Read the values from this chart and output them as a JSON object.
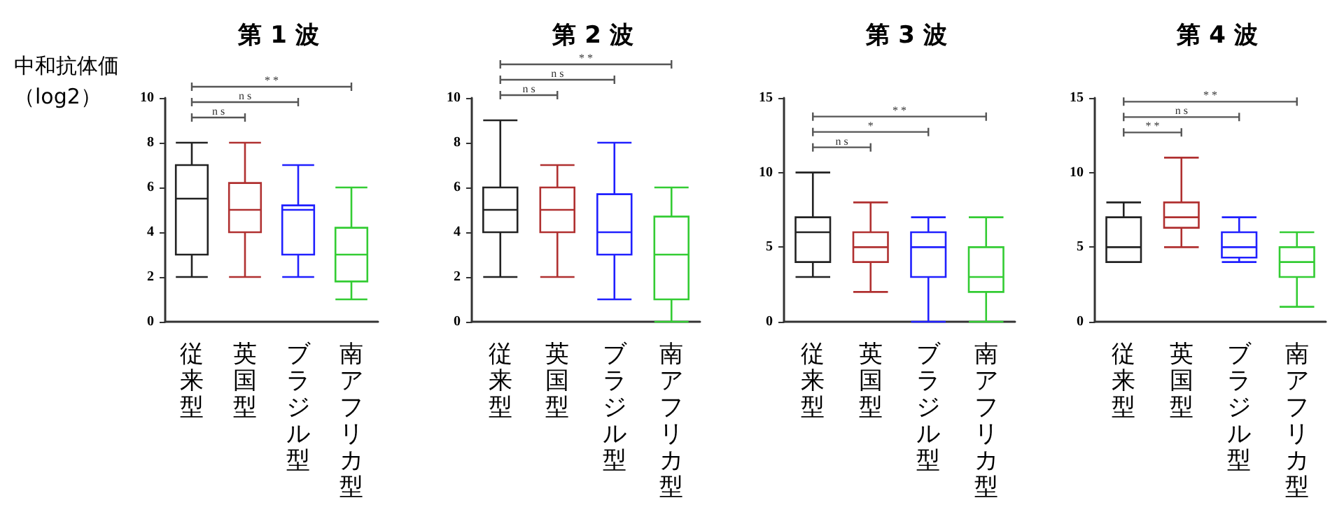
{
  "chart_data": [
    {
      "type": "box",
      "title": "第 1 波",
      "ylabel": "中和抗体価（log2）",
      "categories": [
        "従来型",
        "英国型",
        "ブラジル型",
        "南アフリカ型"
      ],
      "colors": [
        "#222222",
        "#b03030",
        "#2020ff",
        "#33cc33"
      ],
      "ylim": [
        0,
        10
      ],
      "yticks": [
        0,
        2,
        4,
        6,
        8,
        10
      ],
      "grid": false,
      "annotations": [
        "n s",
        "n s",
        "* *"
      ],
      "boxes": [
        {
          "low": 2,
          "q1": 3,
          "median": 5.5,
          "q3": 7,
          "high": 8
        },
        {
          "low": 2,
          "q1": 4,
          "median": 5,
          "q3": 6.2,
          "high": 8
        },
        {
          "low": 2,
          "q1": 3,
          "median": 5,
          "q3": 5.2,
          "high": 7
        },
        {
          "low": 1,
          "q1": 1.8,
          "median": 3,
          "q3": 4.2,
          "high": 6
        }
      ]
    },
    {
      "type": "box",
      "title": "第 2 波",
      "categories": [
        "従来型",
        "英国型",
        "ブラジル型",
        "南アフリカ型"
      ],
      "colors": [
        "#222222",
        "#b03030",
        "#2020ff",
        "#33cc33"
      ],
      "ylim": [
        0,
        10
      ],
      "yticks": [
        0,
        2,
        4,
        6,
        8,
        10
      ],
      "grid": false,
      "annotations": [
        "n s",
        "n s",
        "* *"
      ],
      "boxes": [
        {
          "low": 2,
          "q1": 4,
          "median": 5,
          "q3": 6,
          "high": 9
        },
        {
          "low": 2,
          "q1": 4,
          "median": 5,
          "q3": 6,
          "high": 7
        },
        {
          "low": 1,
          "q1": 3,
          "median": 4,
          "q3": 5.7,
          "high": 8
        },
        {
          "low": 0,
          "q1": 1,
          "median": 3,
          "q3": 4.7,
          "high": 6
        }
      ]
    },
    {
      "type": "box",
      "title": "第 3 波",
      "categories": [
        "従来型",
        "英国型",
        "ブラジル型",
        "南アフリカ型"
      ],
      "colors": [
        "#222222",
        "#b03030",
        "#2020ff",
        "#33cc33"
      ],
      "ylim": [
        0,
        15
      ],
      "yticks": [
        0,
        5,
        10,
        15
      ],
      "grid": false,
      "annotations": [
        "n s",
        "*",
        "* *"
      ],
      "boxes": [
        {
          "low": 3,
          "q1": 4,
          "median": 6,
          "q3": 7,
          "high": 10
        },
        {
          "low": 2,
          "q1": 4,
          "median": 5,
          "q3": 6,
          "high": 8
        },
        {
          "low": 0,
          "q1": 3,
          "median": 5,
          "q3": 6,
          "high": 7
        },
        {
          "low": 0,
          "q1": 2,
          "median": 3,
          "q3": 5,
          "high": 7
        }
      ]
    },
    {
      "type": "box",
      "title": "第 4 波",
      "categories": [
        "従来型",
        "英国型",
        "ブラジル型",
        "南アフリカ型"
      ],
      "colors": [
        "#222222",
        "#b03030",
        "#2020ff",
        "#33cc33"
      ],
      "ylim": [
        0,
        15
      ],
      "yticks": [
        0,
        5,
        10,
        15
      ],
      "grid": false,
      "annotations": [
        "* *",
        "n s",
        "* *"
      ],
      "boxes": [
        {
          "low": 4,
          "q1": 4,
          "median": 5,
          "q3": 7,
          "high": 8
        },
        {
          "low": 5,
          "q1": 6.3,
          "median": 7,
          "q3": 8,
          "high": 11
        },
        {
          "low": 4,
          "q1": 4.3,
          "median": 5,
          "q3": 6,
          "high": 7
        },
        {
          "low": 1,
          "q1": 3,
          "median": 4,
          "q3": 5,
          "high": 6
        }
      ]
    }
  ]
}
